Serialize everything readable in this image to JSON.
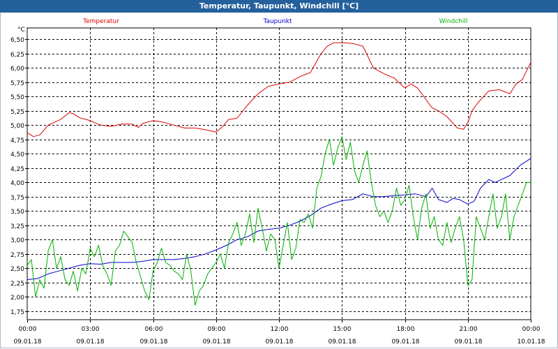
{
  "window": {
    "title": "Temperatur, Taupunkt, Windchill [°C]"
  },
  "colors": {
    "temperatur": "#dd0000",
    "taupunkt": "#0000cc",
    "windchill": "#00b000",
    "title_bar": "#23609c",
    "grid": "#000000"
  },
  "chart_data": {
    "type": "line",
    "title": "Temperatur, Taupunkt, Windchill [°C]",
    "ylabel": "°C",
    "ylim": [
      1.6,
      6.7
    ],
    "yticks": [
      "1,75",
      "2,00",
      "2,25",
      "2,50",
      "2,75",
      "3,00",
      "3,25",
      "3,50",
      "3,75",
      "4,00",
      "4,25",
      "4,50",
      "4,75",
      "5,00",
      "5,25",
      "5,50",
      "5,75",
      "6,00",
      "6,25",
      "6,50"
    ],
    "yvalues": [
      1.75,
      2.0,
      2.25,
      2.5,
      2.75,
      3.0,
      3.25,
      3.5,
      3.75,
      4.0,
      4.25,
      4.5,
      4.75,
      5.0,
      5.25,
      5.5,
      5.75,
      6.0,
      6.25,
      6.5
    ],
    "xlim": [
      0,
      24
    ],
    "xticks": [
      {
        "hour": 0,
        "time": "00:00",
        "date": "09.01.18"
      },
      {
        "hour": 3,
        "time": "03:00",
        "date": "09.01.18"
      },
      {
        "hour": 6,
        "time": "06:00",
        "date": "09.01.18"
      },
      {
        "hour": 9,
        "time": "09:00",
        "date": "09.01.18"
      },
      {
        "hour": 12,
        "time": "12:00",
        "date": "09.01.18"
      },
      {
        "hour": 15,
        "time": "15:00",
        "date": "09.01.18"
      },
      {
        "hour": 18,
        "time": "18:00",
        "date": "09.01.18"
      },
      {
        "hour": 21,
        "time": "21:00",
        "date": "09.01.18"
      },
      {
        "hour": 24,
        "time": "00:00",
        "date": "10.01.18"
      }
    ],
    "grid": true,
    "series": [
      {
        "name": "Temperatur",
        "color": "#dd0000",
        "x": [
          0,
          0.3,
          0.6,
          1.0,
          1.3,
          1.6,
          2.0,
          2.2,
          2.5,
          3.0,
          3.5,
          4.0,
          4.5,
          5.0,
          5.3,
          5.5,
          6.0,
          6.5,
          7.0,
          7.5,
          8.0,
          8.5,
          9.0,
          9.3,
          9.6,
          10.0,
          10.5,
          11.0,
          11.5,
          12.0,
          12.5,
          13.0,
          13.5,
          14.0,
          14.3,
          14.6,
          15.0,
          15.5,
          16.0,
          16.5,
          17.0,
          17.5,
          18.0,
          18.3,
          18.6,
          19.0,
          19.3,
          19.6,
          20.0,
          20.5,
          20.8,
          21.0,
          21.2,
          21.5,
          22.0,
          22.5,
          23.0,
          23.3,
          23.6,
          24.0
        ],
        "values": [
          4.87,
          4.8,
          4.83,
          5.0,
          5.05,
          5.1,
          5.22,
          5.2,
          5.13,
          5.08,
          5.0,
          4.98,
          5.02,
          5.02,
          4.96,
          5.03,
          5.08,
          5.05,
          5.0,
          4.95,
          4.95,
          4.92,
          4.88,
          4.97,
          5.1,
          5.12,
          5.35,
          5.55,
          5.68,
          5.72,
          5.75,
          5.85,
          5.92,
          6.25,
          6.38,
          6.44,
          6.44,
          6.43,
          6.38,
          6.0,
          5.9,
          5.82,
          5.65,
          5.72,
          5.65,
          5.45,
          5.3,
          5.25,
          5.15,
          4.95,
          4.93,
          5.05,
          5.25,
          5.4,
          5.6,
          5.62,
          5.55,
          5.72,
          5.8,
          6.1
        ]
      },
      {
        "name": "Taupunkt",
        "color": "#0000cc",
        "x": [
          0,
          0.5,
          1.0,
          1.5,
          2.0,
          2.5,
          3.0,
          3.5,
          4.0,
          4.5,
          5.0,
          5.5,
          6.0,
          6.5,
          7.0,
          7.5,
          8.0,
          8.5,
          9.0,
          9.5,
          10.0,
          10.5,
          11.0,
          11.5,
          12.0,
          12.5,
          13.0,
          13.5,
          14.0,
          14.5,
          15.0,
          15.5,
          16.0,
          16.5,
          17.0,
          17.5,
          18.0,
          18.5,
          19.0,
          19.3,
          19.6,
          20.0,
          20.3,
          20.6,
          21.0,
          21.3,
          21.6,
          22.0,
          22.3,
          22.6,
          23.0,
          23.5,
          24.0
        ],
        "values": [
          2.3,
          2.32,
          2.4,
          2.45,
          2.5,
          2.55,
          2.58,
          2.57,
          2.6,
          2.6,
          2.6,
          2.62,
          2.65,
          2.65,
          2.65,
          2.67,
          2.7,
          2.75,
          2.82,
          2.9,
          3.0,
          3.05,
          3.15,
          3.18,
          3.2,
          3.25,
          3.32,
          3.42,
          3.55,
          3.62,
          3.68,
          3.7,
          3.8,
          3.75,
          3.75,
          3.77,
          3.78,
          3.8,
          3.75,
          3.9,
          3.7,
          3.65,
          3.72,
          3.7,
          3.62,
          3.67,
          3.9,
          4.05,
          4.0,
          4.05,
          4.12,
          4.3,
          4.42
        ]
      },
      {
        "name": "Windchill",
        "color": "#00b000",
        "x": [
          0,
          0.2,
          0.4,
          0.6,
          0.8,
          1.0,
          1.2,
          1.4,
          1.6,
          1.8,
          2.0,
          2.2,
          2.4,
          2.6,
          2.8,
          3.0,
          3.2,
          3.4,
          3.6,
          3.8,
          4.0,
          4.2,
          4.4,
          4.6,
          4.8,
          5.0,
          5.2,
          5.4,
          5.6,
          5.8,
          6.0,
          6.2,
          6.4,
          6.6,
          6.8,
          7.0,
          7.2,
          7.4,
          7.6,
          7.8,
          8.0,
          8.2,
          8.4,
          8.6,
          8.8,
          9.0,
          9.2,
          9.4,
          9.6,
          9.8,
          10.0,
          10.2,
          10.4,
          10.6,
          10.8,
          11.0,
          11.2,
          11.4,
          11.6,
          11.8,
          12.0,
          12.2,
          12.4,
          12.6,
          12.8,
          13.0,
          13.2,
          13.4,
          13.6,
          13.8,
          14.0,
          14.2,
          14.4,
          14.6,
          14.8,
          15.0,
          15.2,
          15.4,
          15.6,
          15.8,
          16.0,
          16.2,
          16.4,
          16.6,
          16.8,
          17.0,
          17.2,
          17.4,
          17.6,
          17.8,
          18.0,
          18.2,
          18.4,
          18.6,
          18.8,
          19.0,
          19.2,
          19.4,
          19.6,
          19.8,
          20.0,
          20.2,
          20.4,
          20.6,
          20.8,
          21.0,
          21.2,
          21.4,
          21.6,
          21.8,
          22.0,
          22.2,
          22.4,
          22.6,
          22.8,
          23.0,
          23.2,
          23.4,
          23.6,
          23.8,
          24.0
        ],
        "values": [
          2.55,
          2.65,
          2.0,
          2.3,
          2.15,
          2.8,
          3.0,
          2.5,
          2.7,
          2.3,
          2.2,
          2.45,
          2.1,
          2.5,
          2.4,
          2.85,
          2.7,
          2.9,
          2.55,
          2.4,
          2.2,
          2.8,
          2.9,
          3.15,
          3.05,
          2.95,
          2.6,
          2.35,
          2.1,
          1.95,
          2.45,
          2.6,
          2.85,
          2.6,
          2.55,
          2.45,
          2.4,
          2.3,
          2.75,
          2.45,
          1.85,
          2.1,
          2.2,
          2.4,
          2.5,
          2.6,
          2.75,
          2.5,
          2.95,
          3.1,
          3.3,
          2.9,
          3.1,
          3.45,
          2.95,
          3.55,
          3.2,
          2.8,
          3.1,
          3.0,
          2.5,
          2.9,
          3.3,
          2.65,
          2.85,
          3.35,
          3.3,
          3.45,
          3.2,
          3.9,
          4.1,
          4.5,
          4.75,
          4.3,
          4.6,
          4.8,
          4.4,
          4.7,
          4.2,
          4.0,
          4.3,
          4.55,
          4.0,
          3.6,
          3.4,
          3.5,
          3.3,
          3.5,
          3.9,
          3.6,
          3.7,
          3.95,
          3.4,
          3.0,
          3.55,
          3.8,
          3.2,
          3.4,
          3.0,
          2.9,
          3.3,
          2.95,
          3.2,
          3.4,
          3.0,
          2.2,
          2.3,
          3.4,
          3.2,
          3.0,
          3.4,
          3.8,
          3.2,
          3.4,
          3.8,
          3.0,
          3.4,
          3.6,
          3.8,
          4.0,
          4.0
        ]
      }
    ]
  }
}
